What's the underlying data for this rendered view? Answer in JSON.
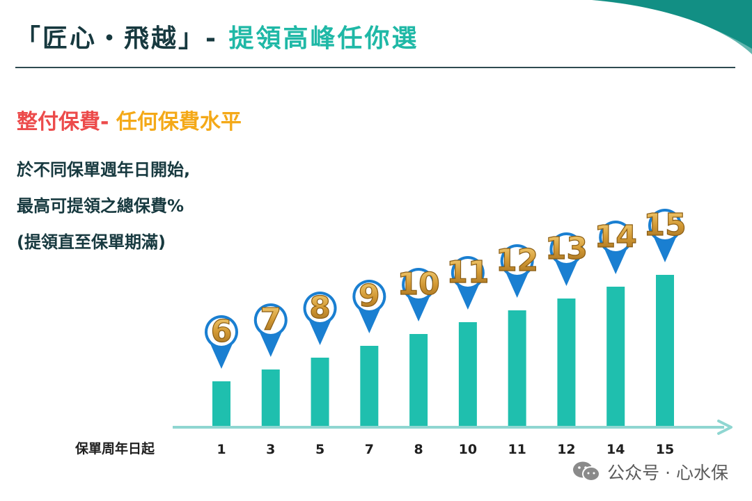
{
  "header": {
    "title_main": "「匠心・飛越」-",
    "title_accent": "提領高峰任你選"
  },
  "subtitle": {
    "red": "整付保費-",
    "yellow": "任何保費水平"
  },
  "description": [
    "於不同保單週年日開始,",
    "最高可提領之總保費%",
    "(提領直至保單期滿)"
  ],
  "colors": {
    "bar": "#1fbfae",
    "pin": "#1a7fd1",
    "axis_arrow": "#8fd6d1",
    "label_gold": "#d19a38",
    "label_gold_dark": "#8a5d14",
    "title_dark": "#17393f",
    "title_teal": "#1fb8a6",
    "subtitle_red": "#ec4b4b",
    "subtitle_yellow": "#f4a918"
  },
  "chart_data": {
    "type": "bar",
    "xlabel": "保單周年日起",
    "categories": [
      "1",
      "3",
      "5",
      "7",
      "8",
      "10",
      "11",
      "12",
      "14",
      "15"
    ],
    "values": [
      6,
      7,
      8,
      9,
      10,
      11,
      12,
      13,
      14,
      15
    ],
    "data_labels": [
      "6",
      "7",
      "8",
      "9",
      "10",
      "11",
      "12",
      "13",
      "14",
      "15"
    ],
    "ylim": [
      0,
      15
    ],
    "grid": false,
    "legend": "none"
  },
  "watermark": {
    "icon": "wechat-icon",
    "text": "公众号 · 心水保"
  }
}
